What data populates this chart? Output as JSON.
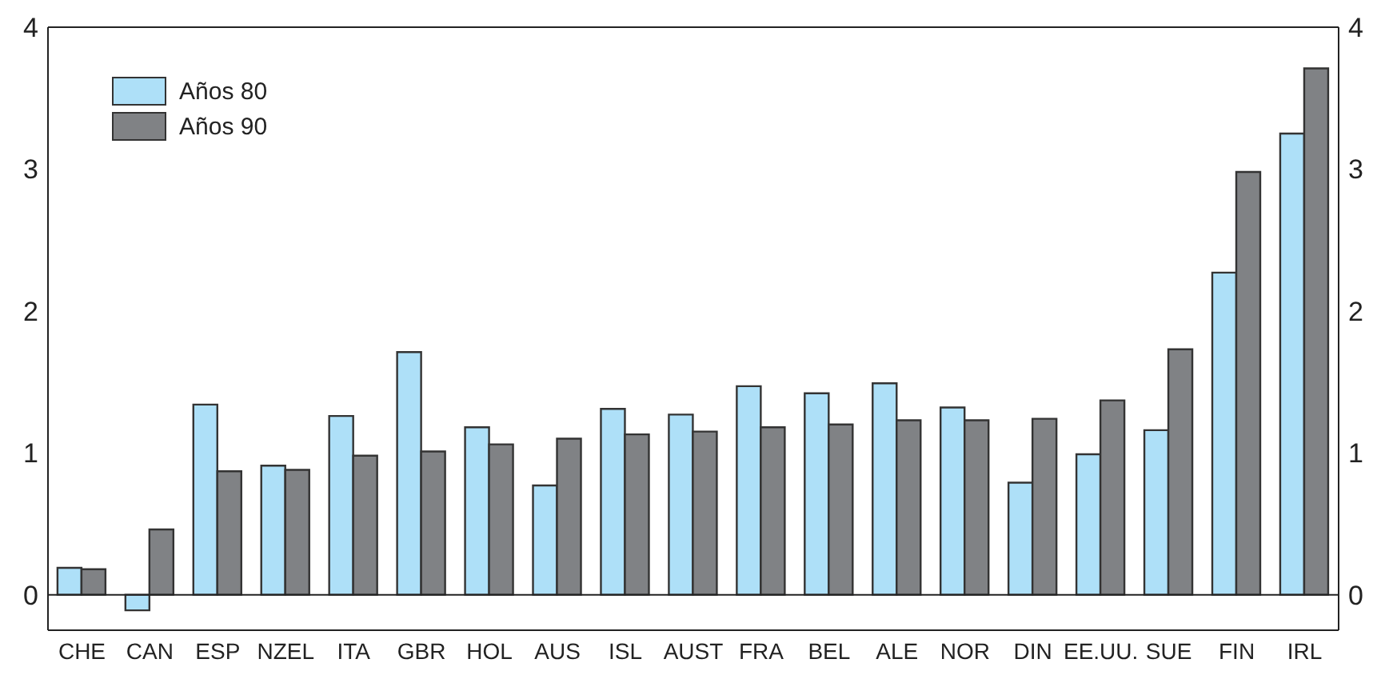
{
  "chart_data": {
    "type": "bar",
    "categories": [
      "CHE",
      "CAN",
      "ESP",
      "NZEL",
      "ITA",
      "GBR",
      "HOL",
      "AUS",
      "ISL",
      "AUST",
      "FRA",
      "BEL",
      "ALE",
      "NOR",
      "DIN",
      "EE.UU.",
      "SUE",
      "FIN",
      "IRL"
    ],
    "series": [
      {
        "name": "Años 80",
        "color": "#aee0f8",
        "values": [
          0.19,
          -0.11,
          1.34,
          0.91,
          1.26,
          1.71,
          1.18,
          0.77,
          1.31,
          1.27,
          1.47,
          1.42,
          1.49,
          1.32,
          0.79,
          0.99,
          1.16,
          2.27,
          3.25
        ]
      },
      {
        "name": "Años 90",
        "color": "#808285",
        "values": [
          0.18,
          0.46,
          0.87,
          0.88,
          0.98,
          1.01,
          1.06,
          1.1,
          1.13,
          1.15,
          1.18,
          1.2,
          1.23,
          1.23,
          1.24,
          1.37,
          1.73,
          2.98,
          3.71
        ]
      }
    ],
    "ylim": [
      -0.25,
      4
    ],
    "yticks": [
      0,
      1,
      2,
      3,
      4
    ],
    "y2lim": [
      -0.25,
      4
    ],
    "y2ticks": [
      0,
      1,
      2,
      3,
      4
    ],
    "ref_lines": [
      {
        "axis": "y",
        "value": 0,
        "color": "#222222"
      }
    ],
    "legend": "top left"
  }
}
